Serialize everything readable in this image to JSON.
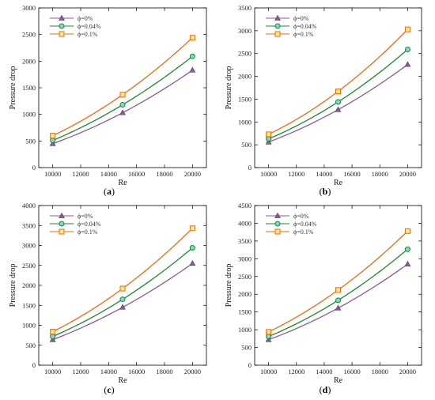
{
  "chart_data": [
    {
      "type": "line",
      "caption": "(a)",
      "xlabel": "Re",
      "ylabel": "Pressure drop",
      "x": [
        10000,
        15000,
        20000
      ],
      "xlim": [
        9000,
        21000
      ],
      "xticks": [
        10000,
        12000,
        14000,
        16000,
        18000,
        20000
      ],
      "ylim": [
        0,
        3000
      ],
      "yticks": [
        0,
        500,
        1000,
        1500,
        2000,
        2500,
        3000
      ],
      "legend": "top-left",
      "grid": false,
      "series": [
        {
          "name": "ϕ=0%",
          "color": "#8c5a96",
          "marker": "triangle",
          "values": [
            450,
            1030,
            1830
          ]
        },
        {
          "name": "ϕ=0.04%",
          "color": "#1a8a2a",
          "marker": "circle",
          "values": [
            510,
            1180,
            2090
          ]
        },
        {
          "name": "ϕ=0.1%",
          "color": "#ee6a10",
          "marker": "square",
          "values": [
            600,
            1370,
            2440
          ]
        }
      ]
    },
    {
      "type": "line",
      "caption": "(b)",
      "xlabel": "Re",
      "ylabel": "Pressure drop",
      "x": [
        10000,
        15000,
        20000
      ],
      "xlim": [
        9000,
        21000
      ],
      "xticks": [
        10000,
        12000,
        14000,
        16000,
        18000,
        20000
      ],
      "ylim": [
        0,
        3500
      ],
      "yticks": [
        0,
        500,
        1000,
        1500,
        2000,
        2500,
        3000,
        3500
      ],
      "legend": "top-left",
      "grid": false,
      "series": [
        {
          "name": "ϕ=0%",
          "color": "#8c5a96",
          "marker": "triangle",
          "values": [
            560,
            1270,
            2260
          ]
        },
        {
          "name": "ϕ=0.04%",
          "color": "#1a8a2a",
          "marker": "circle",
          "values": [
            630,
            1440,
            2590
          ]
        },
        {
          "name": "ϕ=0.1%",
          "color": "#ee6a10",
          "marker": "square",
          "values": [
            730,
            1670,
            3030
          ]
        }
      ]
    },
    {
      "type": "line",
      "caption": "(c)",
      "xlabel": "Re",
      "ylabel": "Pressure drop",
      "x": [
        10000,
        15000,
        20000
      ],
      "xlim": [
        9000,
        21000
      ],
      "xticks": [
        10000,
        12000,
        14000,
        16000,
        18000,
        20000
      ],
      "ylim": [
        0,
        4000
      ],
      "yticks": [
        0,
        500,
        1000,
        1500,
        2000,
        2500,
        3000,
        3500,
        4000
      ],
      "legend": "top-left",
      "grid": false,
      "series": [
        {
          "name": "ϕ=0%",
          "color": "#8c5a96",
          "marker": "triangle",
          "values": [
            640,
            1450,
            2550
          ]
        },
        {
          "name": "ϕ=0.04%",
          "color": "#1a8a2a",
          "marker": "circle",
          "values": [
            720,
            1650,
            2940
          ]
        },
        {
          "name": "ϕ=0.1%",
          "color": "#ee6a10",
          "marker": "square",
          "values": [
            840,
            1920,
            3430
          ]
        }
      ]
    },
    {
      "type": "line",
      "caption": "(d)",
      "xlabel": "Re",
      "ylabel": "Pressure drop",
      "x": [
        10000,
        15000,
        20000
      ],
      "xlim": [
        9000,
        21000
      ],
      "xticks": [
        10000,
        12000,
        14000,
        16000,
        18000,
        20000
      ],
      "ylim": [
        0,
        4500
      ],
      "yticks": [
        0,
        500,
        1000,
        1500,
        2000,
        2500,
        3000,
        3500,
        4000,
        4500
      ],
      "legend": "top-left",
      "grid": false,
      "series": [
        {
          "name": "ϕ=0%",
          "color": "#8c5a96",
          "marker": "triangle",
          "values": [
            720,
            1610,
            2850
          ]
        },
        {
          "name": "ϕ=0.04%",
          "color": "#1a8a2a",
          "marker": "circle",
          "values": [
            810,
            1830,
            3270
          ]
        },
        {
          "name": "ϕ=0.1%",
          "color": "#ee6a10",
          "marker": "square",
          "values": [
            940,
            2120,
            3780
          ]
        }
      ]
    }
  ]
}
